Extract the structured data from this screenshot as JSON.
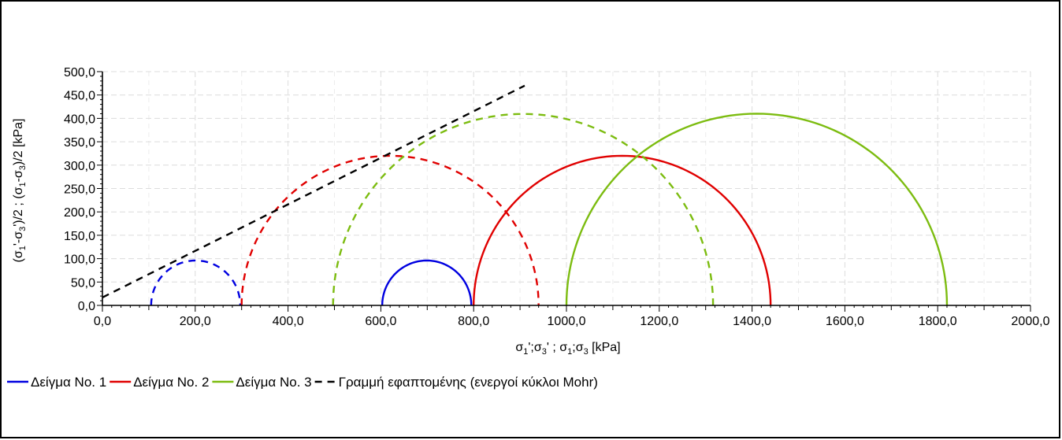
{
  "chart_data": {
    "type": "line",
    "title": "",
    "xlabel": "σ1';σ3' ; σ1;σ3 [kPa]",
    "ylabel": "(σ1'-σ3')/2 ; (σ1-σ3)/2 [kPa]",
    "xlim": [
      0,
      2000
    ],
    "ylim": [
      0,
      500
    ],
    "x_ticks": [
      "0,0",
      "200,0",
      "400,0",
      "600,0",
      "800,0",
      "1000,0",
      "1200,0",
      "1400,0",
      "1600,0",
      "1800,0",
      "2000,0"
    ],
    "y_ticks": [
      "0,0",
      "50,0",
      "100,0",
      "150,0",
      "200,0",
      "250,0",
      "300,0",
      "350,0",
      "400,0",
      "450,0",
      "500,0"
    ],
    "grid": true,
    "legend_position": "bottom-left",
    "series": [
      {
        "name": "Δείγμα No. 1",
        "color": "#0000e0",
        "circles": [
          {
            "kind": "effective",
            "dashed": true,
            "sigma3": 105,
            "sigma1": 297
          },
          {
            "kind": "total",
            "dashed": false,
            "sigma3": 603,
            "sigma1": 795
          }
        ]
      },
      {
        "name": "Δείγμα No. 2",
        "color": "#e00000",
        "circles": [
          {
            "kind": "effective",
            "dashed": true,
            "sigma3": 300,
            "sigma1": 940
          },
          {
            "kind": "total",
            "dashed": false,
            "sigma3": 800,
            "sigma1": 1440
          }
        ]
      },
      {
        "name": "Δείγμα No. 3",
        "color": "#7cbc10",
        "circles": [
          {
            "kind": "effective",
            "dashed": true,
            "sigma3": 497,
            "sigma1": 1316
          },
          {
            "kind": "total",
            "dashed": false,
            "sigma3": 1000,
            "sigma1": 1820
          }
        ]
      },
      {
        "name": "Γραμμή εφαπτομένης (ενεργοί κύκλοι Mohr)",
        "color": "#000000",
        "dashed": true,
        "line": {
          "x": [
            0,
            910
          ],
          "y": [
            17,
            470
          ]
        }
      }
    ]
  }
}
